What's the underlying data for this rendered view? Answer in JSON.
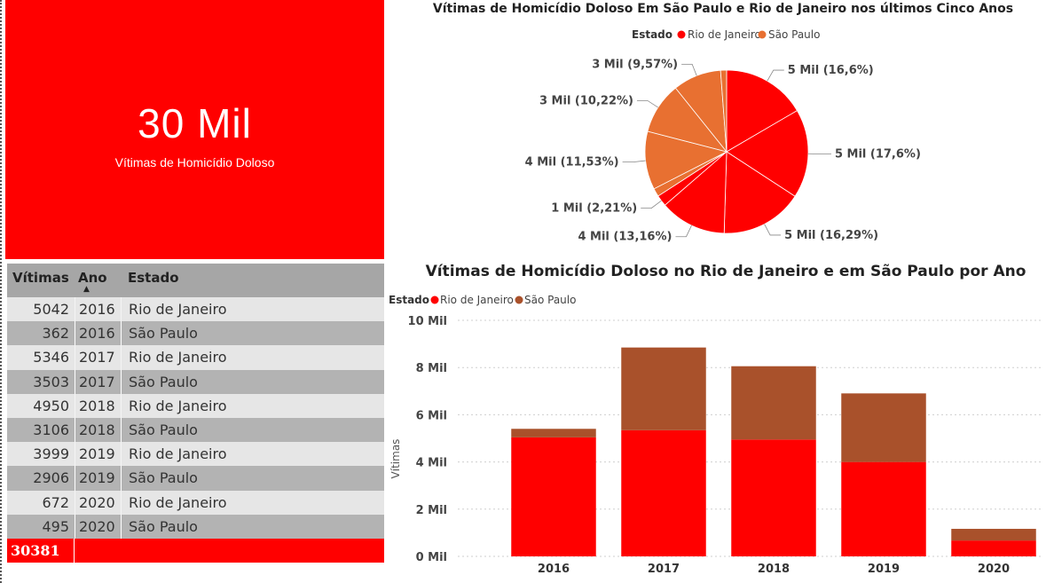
{
  "kpi": {
    "value": "30 Mil",
    "label": "Vítimas de Homicídio Doloso"
  },
  "table": {
    "headers": [
      "Vítimas",
      "Ano",
      "Estado"
    ],
    "rows": [
      [
        "5042",
        "2016",
        "Rio de Janeiro"
      ],
      [
        "362",
        "2016",
        "São Paulo"
      ],
      [
        "5346",
        "2017",
        "Rio de Janeiro"
      ],
      [
        "3503",
        "2017",
        "São Paulo"
      ],
      [
        "4950",
        "2018",
        "Rio de Janeiro"
      ],
      [
        "3106",
        "2018",
        "São Paulo"
      ],
      [
        "3999",
        "2019",
        "Rio de Janeiro"
      ],
      [
        "2906",
        "2019",
        "São Paulo"
      ],
      [
        "672",
        "2020",
        "Rio de Janeiro"
      ],
      [
        "495",
        "2020",
        "São Paulo"
      ]
    ],
    "total": "30381"
  },
  "colors": {
    "rio": "#ff0000",
    "sp_pie": "#e87031",
    "sp_bar": "#a9512b",
    "kpi_bg": "#ff0000"
  },
  "chart_data": [
    {
      "type": "pie",
      "title": "Vítimas de Homicídio Doloso Em São Paulo e Rio de Janeiro nos últimos Cinco Anos",
      "legend": {
        "title": "Estado",
        "items": [
          "Rio de Janeiro",
          "São Paulo"
        ],
        "placement": "top"
      },
      "slices": [
        {
          "series": "Rio de Janeiro",
          "value": 5042,
          "label": "5 Mil (16,6%)"
        },
        {
          "series": "Rio de Janeiro",
          "value": 5346,
          "label": "5 Mil (17,6%)"
        },
        {
          "series": "Rio de Janeiro",
          "value": 4950,
          "label": "5 Mil (16,29%)"
        },
        {
          "series": "Rio de Janeiro",
          "value": 3999,
          "label": "4 Mil (13,16%)"
        },
        {
          "series": "Rio de Janeiro",
          "value": 672,
          "label": "1 Mil (2,21%)"
        },
        {
          "series": "São Paulo",
          "value": 495,
          "label": ""
        },
        {
          "series": "São Paulo",
          "value": 3503,
          "label": "4 Mil (11,53%)"
        },
        {
          "series": "São Paulo",
          "value": 3106,
          "label": "3 Mil (10,22%)"
        },
        {
          "series": "São Paulo",
          "value": 2906,
          "label": "3 Mil (9,57%)"
        },
        {
          "series": "São Paulo",
          "value": 362,
          "label": ""
        }
      ]
    },
    {
      "type": "bar",
      "stacked": true,
      "title": "Vítimas de Homicídio Doloso no Rio de Janeiro e em São Paulo por Ano",
      "legend": {
        "title": "Estado",
        "items": [
          "Rio de Janeiro",
          "São Paulo"
        ],
        "placement": "top-left"
      },
      "categories": [
        "2016",
        "2017",
        "2018",
        "2019",
        "2020"
      ],
      "series": [
        {
          "name": "Rio de Janeiro",
          "values": [
            5042,
            5346,
            4950,
            3999,
            672
          ]
        },
        {
          "name": "São Paulo",
          "values": [
            362,
            3503,
            3106,
            2906,
            495
          ]
        }
      ],
      "ylabel": "Vítimas",
      "ylim": [
        0,
        10000
      ],
      "yticks": [
        {
          "value": 0,
          "label": "0 Mil"
        },
        {
          "value": 2000,
          "label": "2 Mil"
        },
        {
          "value": 4000,
          "label": "4 Mil"
        },
        {
          "value": 6000,
          "label": "6 Mil"
        },
        {
          "value": 8000,
          "label": "8 Mil"
        },
        {
          "value": 10000,
          "label": "10 Mil"
        }
      ],
      "grid": true
    }
  ]
}
